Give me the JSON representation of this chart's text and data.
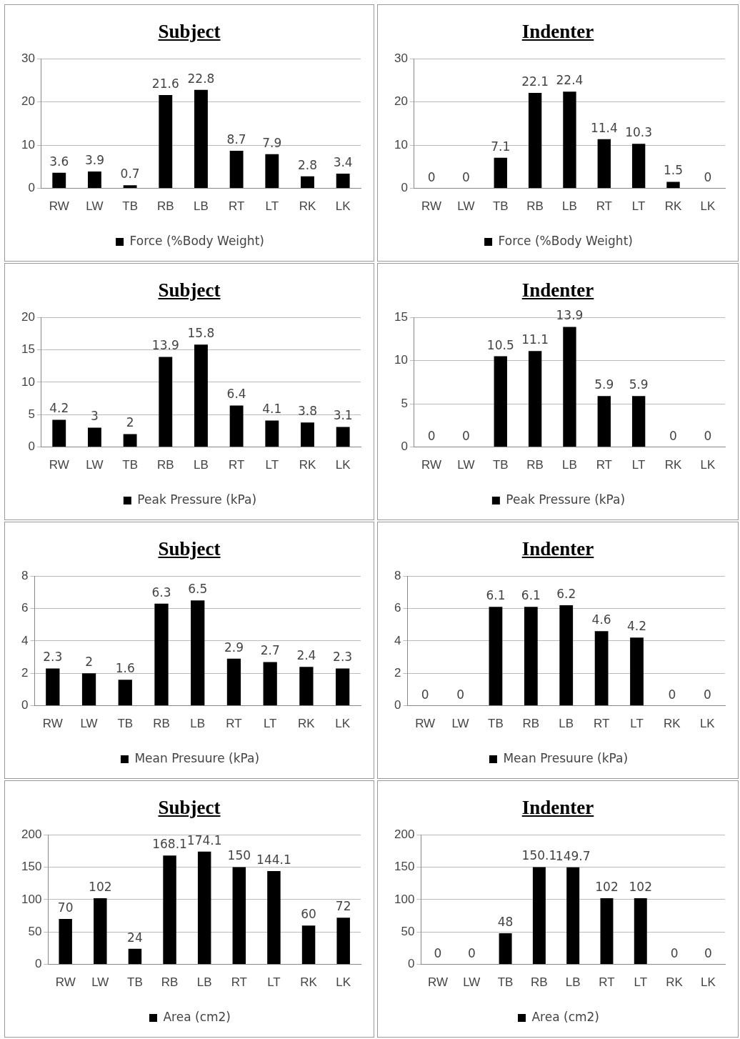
{
  "chart_data": [
    {
      "type": "bar",
      "title": "Subject",
      "categories": [
        "RW",
        "LW",
        "TB",
        "RB",
        "LB",
        "RT",
        "LT",
        "RK",
        "LK"
      ],
      "series": [
        {
          "name": "Force (%Body Weight)",
          "color": "#000000",
          "values": [
            3.6,
            3.9,
            0.7,
            21.6,
            22.8,
            8.7,
            7.9,
            2.8,
            3.4
          ]
        }
      ],
      "ylim": [
        0,
        30
      ],
      "yticks": [
        0,
        10,
        20,
        30
      ],
      "grid": "y",
      "legend": "bottom",
      "data_labels": true
    },
    {
      "type": "bar",
      "title": "Indenter",
      "categories": [
        "RW",
        "LW",
        "TB",
        "RB",
        "LB",
        "RT",
        "LT",
        "RK",
        "LK"
      ],
      "series": [
        {
          "name": "Force (%Body Weight)",
          "color": "#000000",
          "values": [
            0,
            0,
            7.1,
            22.1,
            22.4,
            11.4,
            10.3,
            1.5,
            0
          ]
        }
      ],
      "ylim": [
        0,
        30
      ],
      "yticks": [
        0,
        10,
        20,
        30
      ],
      "grid": "y",
      "legend": "bottom",
      "data_labels": true
    },
    {
      "type": "bar",
      "title": "Subject",
      "categories": [
        "RW",
        "LW",
        "TB",
        "RB",
        "LB",
        "RT",
        "LT",
        "RK",
        "LK"
      ],
      "series": [
        {
          "name": "Peak Pressure (kPa)",
          "color": "#000000",
          "values": [
            4.2,
            3,
            2,
            13.9,
            15.8,
            6.4,
            4.1,
            3.8,
            3.1
          ]
        }
      ],
      "ylim": [
        0,
        20
      ],
      "yticks": [
        0,
        5,
        10,
        15,
        20
      ],
      "grid": "y",
      "legend": "bottom",
      "data_labels": true
    },
    {
      "type": "bar",
      "title": "Indenter",
      "categories": [
        "RW",
        "LW",
        "TB",
        "RB",
        "LB",
        "RT",
        "LT",
        "RK",
        "LK"
      ],
      "series": [
        {
          "name": "Peak Pressure (kPa)",
          "color": "#000000",
          "values": [
            0,
            0,
            10.5,
            11.1,
            13.9,
            5.9,
            5.9,
            0,
            0
          ]
        }
      ],
      "ylim": [
        0,
        15
      ],
      "yticks": [
        0,
        5,
        10,
        15
      ],
      "grid": "y",
      "legend": "bottom",
      "data_labels": true
    },
    {
      "type": "bar",
      "title": "Subject",
      "categories": [
        "RW",
        "LW",
        "TB",
        "RB",
        "LB",
        "RT",
        "LT",
        "RK",
        "LK"
      ],
      "series": [
        {
          "name": "Mean Presuure (kPa)",
          "color": "#000000",
          "values": [
            2.3,
            2,
            1.6,
            6.3,
            6.5,
            2.9,
            2.7,
            2.4,
            2.3
          ]
        }
      ],
      "ylim": [
        0,
        8
      ],
      "yticks": [
        0,
        2,
        4,
        6,
        8
      ],
      "grid": "y",
      "legend": "bottom",
      "data_labels": true
    },
    {
      "type": "bar",
      "title": "Indenter",
      "categories": [
        "RW",
        "LW",
        "TB",
        "RB",
        "LB",
        "RT",
        "LT",
        "RK",
        "LK"
      ],
      "series": [
        {
          "name": "Mean Presuure (kPa)",
          "color": "#000000",
          "values": [
            0,
            0,
            6.1,
            6.1,
            6.2,
            4.6,
            4.2,
            0,
            0
          ]
        }
      ],
      "ylim": [
        0,
        8
      ],
      "yticks": [
        0,
        2,
        4,
        6,
        8
      ],
      "grid": "y",
      "legend": "bottom",
      "data_labels": true
    },
    {
      "type": "bar",
      "title": "Subject",
      "categories": [
        "RW",
        "LW",
        "TB",
        "RB",
        "LB",
        "RT",
        "LT",
        "RK",
        "LK"
      ],
      "series": [
        {
          "name": "Area (cm2)",
          "color": "#000000",
          "values": [
            70,
            102,
            24,
            168.1,
            174.1,
            150,
            144.1,
            60,
            72
          ]
        }
      ],
      "ylim": [
        0,
        200
      ],
      "yticks": [
        0,
        50,
        100,
        150,
        200
      ],
      "grid": "y",
      "legend": "bottom",
      "data_labels": true
    },
    {
      "type": "bar",
      "title": "Indenter",
      "categories": [
        "RW",
        "LW",
        "TB",
        "RB",
        "LB",
        "RT",
        "LT",
        "RK",
        "LK"
      ],
      "series": [
        {
          "name": "Area (cm2)",
          "color": "#000000",
          "values": [
            0,
            0,
            48,
            150.1,
            149.7,
            102,
            102,
            0,
            0
          ]
        }
      ],
      "ylim": [
        0,
        200
      ],
      "yticks": [
        0,
        50,
        100,
        150,
        200
      ],
      "grid": "y",
      "legend": "bottom",
      "data_labels": true
    }
  ]
}
